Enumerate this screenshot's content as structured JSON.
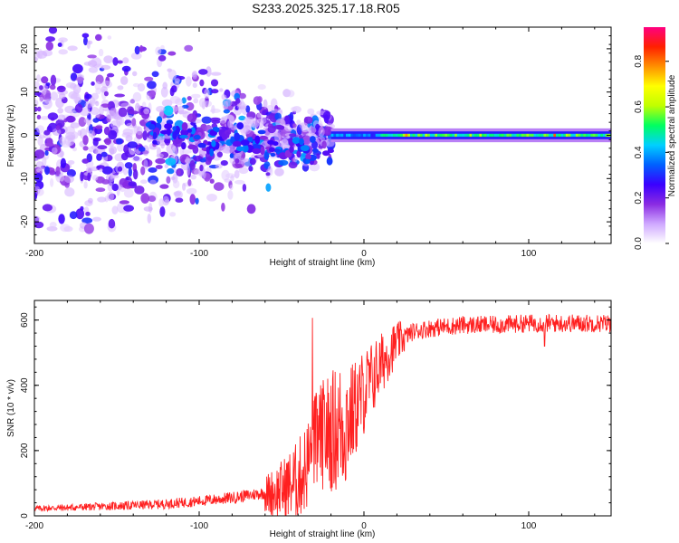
{
  "title": "S233.2025.325.17.18.R05",
  "chart_data": [
    {
      "type": "heatmap",
      "name": "spectrogram",
      "xlabel": "Height of straight line (km)",
      "ylabel": "Frequency (Hz)",
      "xlim": [
        -200,
        150
      ],
      "ylim": [
        -25,
        25
      ],
      "xticks": [
        -200,
        -100,
        0,
        100
      ],
      "xtick_labels": [
        "-200",
        "-100",
        "0",
        "100"
      ],
      "yticks": [
        -20,
        -10,
        0,
        10,
        20
      ],
      "ytick_labels": [
        "-20",
        "-10",
        "0",
        "10",
        "20"
      ],
      "colorbar": {
        "label": "Normalized spectral amplitude",
        "range": [
          0.0,
          0.95
        ],
        "ticks": [
          0.0,
          0.2,
          0.4,
          0.6,
          0.8
        ],
        "tick_labels": [
          "0.0",
          "0.2",
          "0.4",
          "0.6",
          "0.8"
        ],
        "colors": [
          "#ffffff",
          "#cfa8ff",
          "#8a2be2",
          "#3a00ff",
          "#0060ff",
          "#00d0ff",
          "#00ff60",
          "#c0ff00",
          "#ffff00",
          "#ff9000",
          "#ff2000",
          "#ff0080"
        ]
      },
      "carrier": {
        "x_start": -20,
        "x_end": 150,
        "frequency": 0,
        "bandwidth_hz": 2,
        "typical_amplitude": 0.55
      }
    },
    {
      "type": "line",
      "name": "snr",
      "xlabel": "Height of straight line (km)",
      "ylabel": "SNR (10 * v/v)",
      "xlim": [
        -200,
        150
      ],
      "ylim": [
        0,
        660
      ],
      "xticks": [
        -200,
        -100,
        0,
        100
      ],
      "xtick_labels": [
        "-200",
        "-100",
        "0",
        "100"
      ],
      "yticks": [
        0,
        200,
        400,
        600
      ],
      "ytick_labels": [
        "0",
        "200",
        "400",
        "600"
      ],
      "color": "#ff2020",
      "x": [
        -200,
        -180,
        -160,
        -140,
        -120,
        -100,
        -80,
        -60,
        -50,
        -40,
        -35,
        -30,
        -25,
        -20,
        -15,
        -10,
        -5,
        0,
        5,
        10,
        15,
        20,
        25,
        30,
        40,
        50,
        60,
        80,
        100,
        120,
        140,
        150
      ],
      "y": [
        20,
        22,
        25,
        28,
        32,
        40,
        50,
        65,
        80,
        110,
        150,
        220,
        250,
        260,
        270,
        290,
        330,
        380,
        420,
        460,
        500,
        530,
        550,
        565,
        575,
        580,
        585,
        585,
        590,
        590,
        590,
        590
      ]
    }
  ]
}
